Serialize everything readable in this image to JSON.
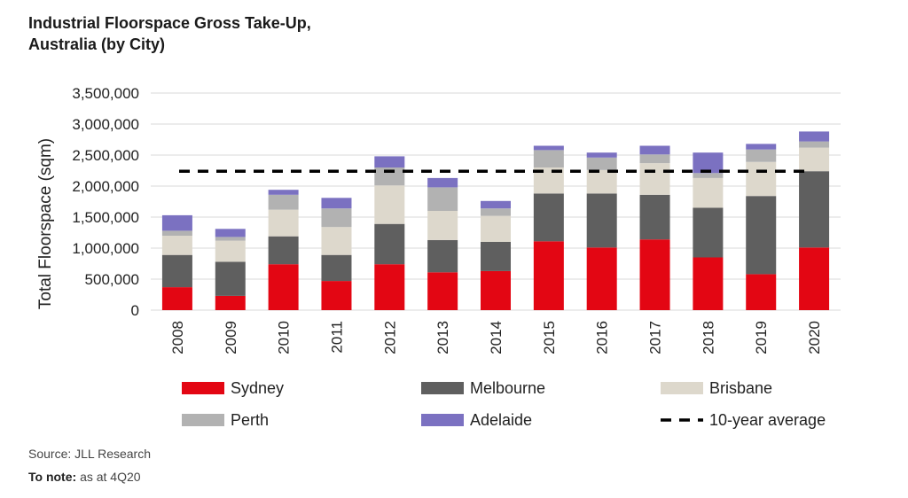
{
  "title_line1": "Industrial Floorspace Gross Take-Up,",
  "title_line2": "Australia (by City)",
  "source": "Source: JLL Research",
  "note_label": "To note:",
  "note_text": "as at 4Q20",
  "chart_data": {
    "type": "bar",
    "stacked": true,
    "title": "Industrial Floorspace Gross Take-Up, Australia (by City)",
    "xlabel": "",
    "ylabel": "Total Floorspace (sqm)",
    "ylim": [
      0,
      3500000
    ],
    "yticks": [
      0,
      500000,
      1000000,
      1500000,
      2000000,
      2500000,
      3000000,
      3500000
    ],
    "ytick_labels": [
      "0",
      "500,000",
      "1,000,000",
      "1,500,000",
      "2,000,000",
      "2,500,000",
      "3,000,000",
      "3,500,000"
    ],
    "grid": "horizontal",
    "legend_position": "bottom",
    "categories": [
      "2008",
      "2009",
      "2010",
      "2011",
      "2012",
      "2013",
      "2014",
      "2015",
      "2016",
      "2017",
      "2018",
      "2019",
      "2020"
    ],
    "series": [
      {
        "name": "Sydney",
        "color": "#e30613",
        "values": [
          370000,
          230000,
          740000,
          470000,
          740000,
          610000,
          630000,
          1110000,
          1010000,
          1140000,
          850000,
          580000,
          1010000
        ]
      },
      {
        "name": "Melbourne",
        "color": "#5f5f5f",
        "values": [
          520000,
          550000,
          450000,
          420000,
          650000,
          520000,
          470000,
          770000,
          870000,
          720000,
          800000,
          1260000,
          1230000
        ]
      },
      {
        "name": "Brisbane",
        "color": "#ddd8cc",
        "values": [
          310000,
          340000,
          430000,
          450000,
          620000,
          470000,
          420000,
          420000,
          380000,
          510000,
          480000,
          550000,
          380000
        ]
      },
      {
        "name": "Perth",
        "color": "#b2b2b2",
        "values": [
          80000,
          60000,
          240000,
          300000,
          290000,
          380000,
          120000,
          280000,
          200000,
          140000,
          80000,
          200000,
          100000
        ]
      },
      {
        "name": "Adelaide",
        "color": "#7b71c1",
        "values": [
          250000,
          130000,
          80000,
          170000,
          180000,
          150000,
          120000,
          70000,
          80000,
          140000,
          330000,
          90000,
          160000
        ]
      }
    ],
    "reference_line": {
      "name": "10-year average",
      "value": 2240000,
      "style": "dashed",
      "color": "#000000"
    }
  }
}
